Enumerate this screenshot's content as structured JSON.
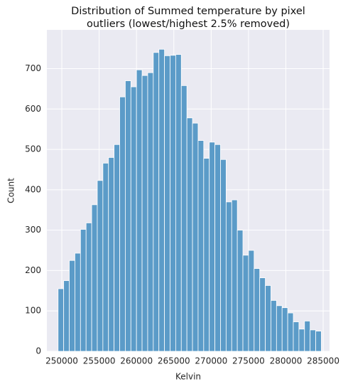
{
  "chart_data": {
    "type": "histogram",
    "title": [
      "Distribution of Summed temperature by pixel",
      "outliers (lowest/highest 2.5% removed)"
    ],
    "xlabel": "Kelvin",
    "ylabel": "Count",
    "bins": [
      249500,
      250250,
      251000,
      251750,
      252500,
      253250,
      254000,
      254750,
      255500,
      256250,
      257000,
      257750,
      258500,
      259250,
      260000,
      260750,
      261500,
      262250,
      263000,
      263750,
      264500,
      265250,
      266000,
      266750,
      267500,
      268250,
      269000,
      269750,
      270500,
      271250,
      272000,
      272750,
      273500,
      274250,
      275000,
      275750,
      276500,
      277250,
      278000,
      278750,
      279500,
      280250,
      281000,
      281750,
      282500,
      283250,
      284000,
      284750
    ],
    "values": [
      155,
      175,
      225,
      243,
      302,
      318,
      363,
      423,
      466,
      480,
      512,
      630,
      670,
      655,
      697,
      683,
      690,
      740,
      748,
      732,
      733,
      735,
      658,
      578,
      565,
      522,
      478,
      518,
      512,
      475,
      370,
      375,
      300,
      238,
      250,
      205,
      182,
      163,
      126,
      113,
      108,
      95,
      73,
      55,
      75,
      53,
      50
    ],
    "color": "#5b9bc8",
    "xlim": [
      248000,
      285850
    ],
    "ylim": [
      0,
      796
    ],
    "xticks": [
      250000,
      255000,
      260000,
      265000,
      270000,
      275000,
      280000,
      285000
    ],
    "yticks": [
      0,
      100,
      200,
      300,
      400,
      500,
      600,
      700
    ],
    "grid": true
  }
}
